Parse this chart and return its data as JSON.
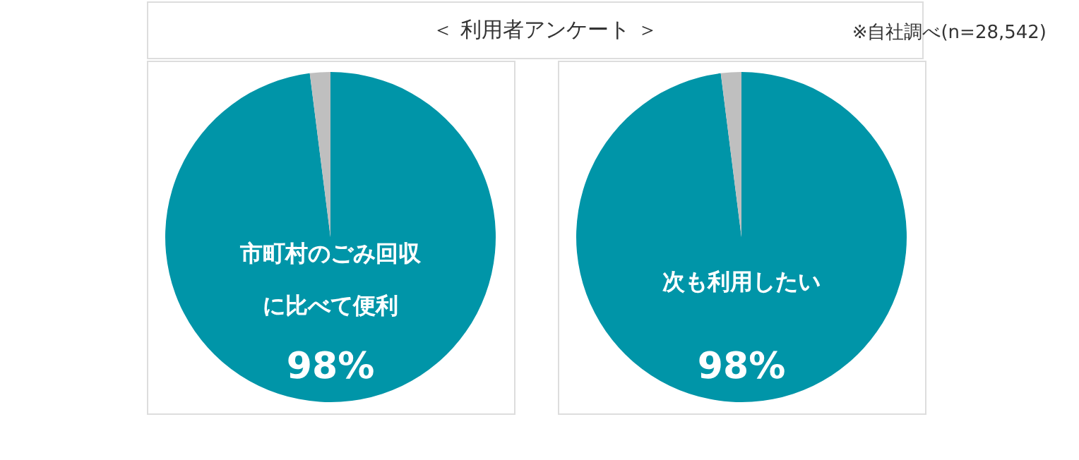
{
  "chart_data": [
    {
      "type": "other",
      "title": "＜ 利用者アンケート ＞",
      "annotations": [
        "※自社調べ(n=28,542)"
      ]
    },
    {
      "type": "pie",
      "categories": [
        null,
        null
      ],
      "values": [
        98,
        2
      ],
      "colors": [
        "#0095a8",
        "#bfbfbf"
      ],
      "value_labels": [
        "98%",
        null
      ],
      "annotations": [
        "市町村のごみ回収",
        "に比べて便利"
      ],
      "legend": false
    },
    {
      "type": "pie",
      "categories": [
        null,
        null
      ],
      "values": [
        98,
        2
      ],
      "colors": [
        "#0095a8",
        "#bfbfbf"
      ],
      "value_labels": [
        "98%",
        null
      ],
      "annotations": [
        "次も利用したい"
      ],
      "legend": false
    }
  ]
}
